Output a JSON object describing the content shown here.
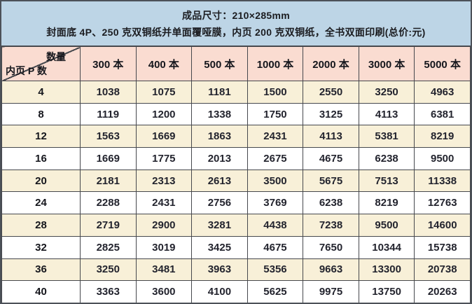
{
  "banner": {
    "line1": "成品尺寸：210×285mm",
    "line2": "封面底 4P、250 克双铜纸并单面覆哑膜，内页 200 克双铜纸，全书双面印刷(总价:元)"
  },
  "table": {
    "corner": {
      "top_right": "数量",
      "bottom_left": "内页 P 数"
    },
    "columns": [
      "300 本",
      "400 本",
      "500 本",
      "1000 本",
      "2000 本",
      "3000 本",
      "5000 本"
    ],
    "rows": [
      {
        "label": "4",
        "values": [
          1038,
          1075,
          1181,
          1500,
          2550,
          3250,
          4963
        ]
      },
      {
        "label": "8",
        "values": [
          1119,
          1200,
          1338,
          1750,
          3125,
          4113,
          6381
        ]
      },
      {
        "label": "12",
        "values": [
          1563,
          1669,
          1863,
          2431,
          4113,
          5381,
          8219
        ]
      },
      {
        "label": "16",
        "values": [
          1669,
          1775,
          2013,
          2675,
          4675,
          6238,
          9500
        ]
      },
      {
        "label": "20",
        "values": [
          2181,
          2313,
          2613,
          3500,
          5675,
          7513,
          11338
        ]
      },
      {
        "label": "24",
        "values": [
          2288,
          2431,
          2756,
          3769,
          6238,
          8219,
          12763
        ]
      },
      {
        "label": "28",
        "values": [
          2719,
          2900,
          3281,
          4438,
          7238,
          9500,
          14600
        ]
      },
      {
        "label": "32",
        "values": [
          2825,
          3019,
          3425,
          4675,
          7650,
          10344,
          15738
        ]
      },
      {
        "label": "36",
        "values": [
          3250,
          3481,
          3963,
          5356,
          9663,
          13300,
          20738
        ]
      },
      {
        "label": "40",
        "values": [
          3363,
          3600,
          4100,
          5625,
          9975,
          13750,
          20263
        ]
      }
    ]
  },
  "chart_data": {
    "type": "table",
    "title": "成品尺寸：210×285mm 印刷总价表",
    "row_header": "内页 P 数",
    "column_header": "数量",
    "categories": [
      "300 本",
      "400 本",
      "500 本",
      "1000 本",
      "2000 本",
      "3000 本",
      "5000 本"
    ],
    "series": [
      {
        "name": "4",
        "values": [
          1038,
          1075,
          1181,
          1500,
          2550,
          3250,
          4963
        ]
      },
      {
        "name": "8",
        "values": [
          1119,
          1200,
          1338,
          1750,
          3125,
          4113,
          6381
        ]
      },
      {
        "name": "12",
        "values": [
          1563,
          1669,
          1863,
          2431,
          4113,
          5381,
          8219
        ]
      },
      {
        "name": "16",
        "values": [
          1669,
          1775,
          2013,
          2675,
          4675,
          6238,
          9500
        ]
      },
      {
        "name": "20",
        "values": [
          2181,
          2313,
          2613,
          3500,
          5675,
          7513,
          11338
        ]
      },
      {
        "name": "24",
        "values": [
          2288,
          2431,
          2756,
          3769,
          6238,
          8219,
          12763
        ]
      },
      {
        "name": "28",
        "values": [
          2719,
          2900,
          3281,
          4438,
          7238,
          9500,
          14600
        ]
      },
      {
        "name": "32",
        "values": [
          2825,
          3019,
          3425,
          4675,
          7650,
          10344,
          15738
        ]
      },
      {
        "name": "36",
        "values": [
          3250,
          3481,
          3963,
          5356,
          9663,
          13300,
          20738
        ]
      },
      {
        "name": "40",
        "values": [
          3363,
          3600,
          4100,
          5625,
          9975,
          13750,
          20263
        ]
      }
    ]
  },
  "colors": {
    "banner_bg": "#bdd5e6",
    "header_bg": "#fadcd1",
    "stripe_bg": "#f8f0d8",
    "row_bg": "#ffffff",
    "grid_border": "#46484d",
    "outer_border": "#4c5158",
    "text": "#23242e"
  }
}
